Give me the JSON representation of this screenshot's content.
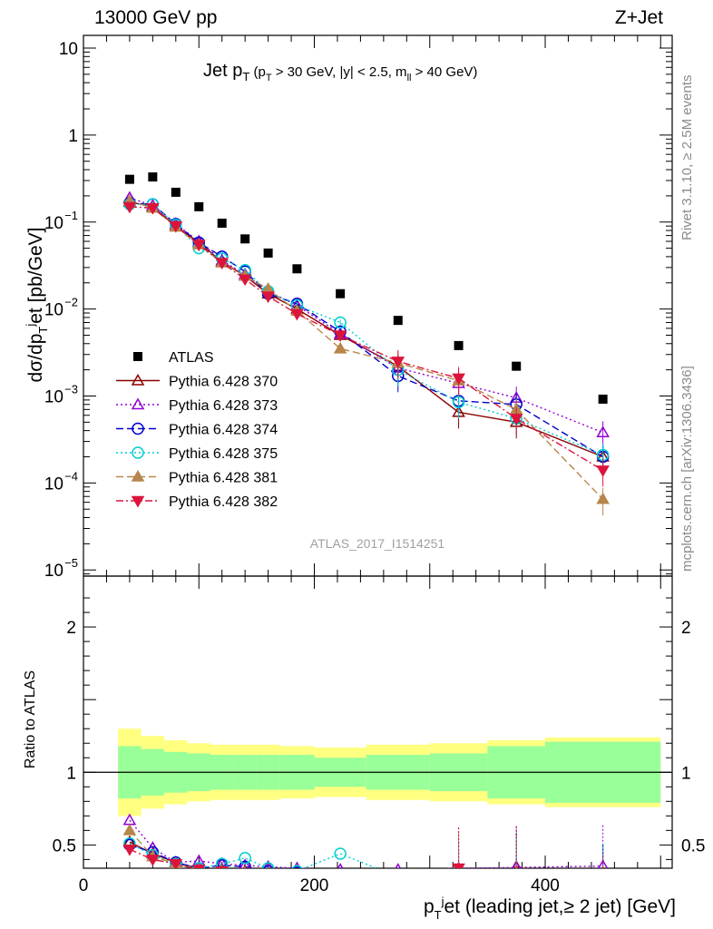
{
  "header": {
    "left": "13000 GeV pp",
    "right": "Z+Jet"
  },
  "side_labels": {
    "rivet": "Rivet 3.1.10, ≥ 2.5M events",
    "mcplots": "mcplots.cern.ch [arXiv:1306.3436]"
  },
  "chart_data": {
    "type": "scatter",
    "title": "Jet p_T (p_T > 30 GeV, |y| < 2.5, m_ll > 40 GeV)",
    "xlabel": "p_T^j et (leading jet,≥ 2 jet) [GeV]",
    "ylabel": "dσ/dp_T^j et [pb/GeV]",
    "ratio_ylabel": "Ratio to ATLAS",
    "analysis_id": "ATLAS_2017_I1514251",
    "xlim": [
      0,
      510
    ],
    "ylim": [
      8.5e-06,
      14
    ],
    "yscale": "log",
    "ratio_ylim": [
      0.34,
      2.35
    ],
    "x_ticks": [
      0,
      200,
      400
    ],
    "ratio_ticks": [
      0.5,
      1,
      2
    ],
    "legend_position": "lower-left",
    "x": [
      40,
      60,
      80,
      100,
      120,
      140,
      160,
      185,
      222.5,
      272.5,
      325,
      375,
      450
    ],
    "bins": [
      [
        30,
        50
      ],
      [
        50,
        70
      ],
      [
        70,
        90
      ],
      [
        90,
        110
      ],
      [
        110,
        130
      ],
      [
        130,
        150
      ],
      [
        150,
        170
      ],
      [
        170,
        200
      ],
      [
        200,
        245
      ],
      [
        245,
        300
      ],
      [
        300,
        350
      ],
      [
        350,
        400
      ],
      [
        400,
        500
      ]
    ],
    "atlas": {
      "name": "ATLAS",
      "color": "#000000",
      "values": [
        0.31,
        0.33,
        0.22,
        0.15,
        0.097,
        0.064,
        0.044,
        0.029,
        0.015,
        0.0074,
        0.0038,
        0.0022,
        0.00092
      ],
      "band_stat": [
        0.18,
        0.16,
        0.14,
        0.13,
        0.12,
        0.12,
        0.12,
        0.12,
        0.1,
        0.12,
        0.13,
        0.18,
        0.21
      ],
      "band_total": [
        0.3,
        0.25,
        0.22,
        0.2,
        0.19,
        0.19,
        0.19,
        0.18,
        0.17,
        0.19,
        0.2,
        0.22,
        0.24
      ]
    },
    "series": [
      {
        "name": "Pythia 6.428 370",
        "color": "#8b0000",
        "dash": "",
        "marker": "triangle-open",
        "values": [
          0.17,
          0.15,
          0.09,
          0.058,
          0.035,
          0.024,
          0.015,
          0.01,
          0.005,
          0.0022,
          0.00065,
          0.0005,
          0.0002
        ],
        "ratio": [
          0.52,
          0.44,
          0.38,
          0.34,
          0.33,
          0.32,
          0.31,
          0.3,
          0.3,
          0.3,
          0.17,
          0.35,
          0.22
        ]
      },
      {
        "name": "Pythia 6.428 373",
        "color": "#9400d3",
        "dash": "2,3",
        "marker": "triangle-open",
        "values": [
          0.19,
          0.155,
          0.095,
          0.06,
          0.036,
          0.025,
          0.016,
          0.011,
          0.0052,
          0.0021,
          0.0014,
          0.00095,
          0.00038
        ],
        "ratio": [
          0.67,
          0.48,
          0.38,
          0.39,
          0.37,
          0.36,
          0.35,
          0.34,
          0.33,
          0.33,
          0.34,
          0.345,
          0.355
        ]
      },
      {
        "name": "Pythia 6.428 374",
        "color": "#0000cd",
        "dash": "8,4",
        "marker": "circle-open",
        "values": [
          0.165,
          0.16,
          0.095,
          0.058,
          0.04,
          0.027,
          0.015,
          0.0115,
          0.0055,
          0.0017,
          0.00088,
          0.0008,
          0.0002
        ],
        "ratio": [
          0.5,
          0.45,
          0.38,
          0.34,
          0.36,
          0.35,
          0.32,
          0.31,
          0.3,
          0.3,
          0.25,
          0.3,
          0.22
        ]
      },
      {
        "name": "Pythia 6.428 375",
        "color": "#00ced1",
        "dash": "2,3",
        "marker": "circle-open",
        "values": [
          0.16,
          0.16,
          0.093,
          0.05,
          0.038,
          0.028,
          0.016,
          0.011,
          0.007,
          0.002,
          0.00085,
          0.00055,
          0.00021
        ],
        "ratio": [
          0.51,
          0.43,
          0.37,
          0.34,
          0.37,
          0.41,
          0.34,
          0.32,
          0.44,
          0.28,
          0.24,
          0.27,
          0.23
        ]
      },
      {
        "name": "Pythia 6.428 381",
        "color": "#b8864b",
        "dash": "8,4",
        "marker": "triangle-up",
        "values": [
          0.175,
          0.145,
          0.088,
          0.055,
          0.034,
          0.024,
          0.017,
          0.0095,
          0.0035,
          0.0024,
          0.0015,
          0.0007,
          6.5e-05
        ],
        "ratio": [
          0.6,
          0.42,
          0.37,
          0.33,
          0.32,
          0.31,
          0.3,
          0.29,
          0.25,
          0.3,
          0.3,
          0.31,
          0.07
        ]
      },
      {
        "name": "Pythia 6.428 382",
        "color": "#dc143c",
        "dash": "8,3,2,3",
        "marker": "triangle-down",
        "values": [
          0.15,
          0.145,
          0.09,
          0.055,
          0.034,
          0.022,
          0.014,
          0.0088,
          0.005,
          0.0025,
          0.0016,
          0.00055,
          0.00014
        ],
        "ratio": [
          0.47,
          0.4,
          0.37,
          0.33,
          0.32,
          0.31,
          0.3,
          0.29,
          0.3,
          0.3,
          0.34,
          0.28,
          0.15
        ]
      }
    ]
  }
}
